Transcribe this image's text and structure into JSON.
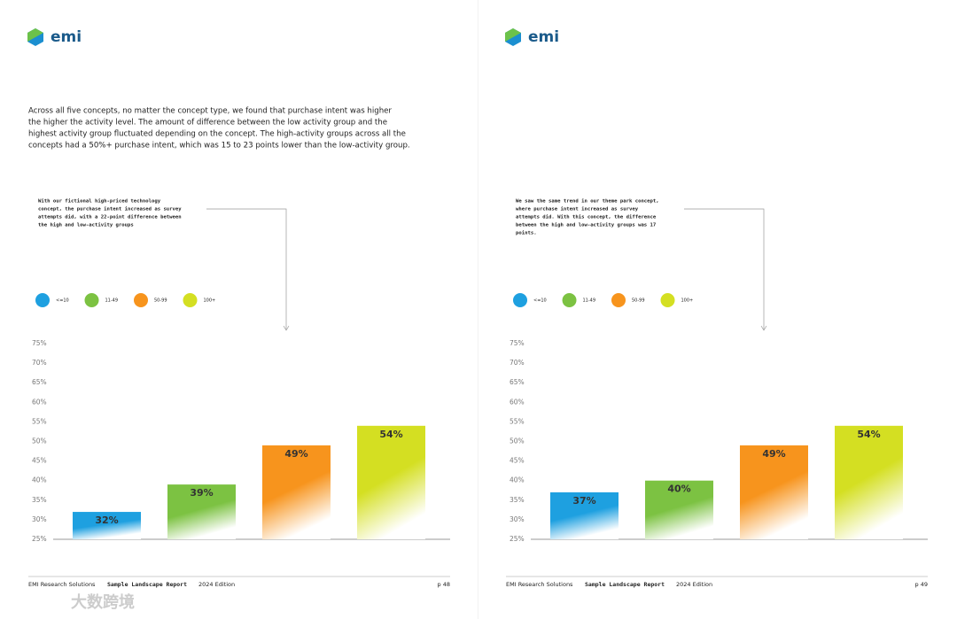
{
  "pages": [
    {
      "logo": "emi",
      "intro": [
        "Across all five concepts, no matter the concept type, we found that purchase intent was higher",
        "the higher the activity level. The amount of difference between the low activity group and the",
        "highest activity group fluctuated depending on the concept. The high-activity groups across all the",
        "concepts had a 50%+ purchase intent, which was 15 to 23 points lower than the low-activity group."
      ],
      "note": [
        "With our fictional high-priced technology",
        "concept, the purchase intent increased as survey",
        "attempts did, with a 22-point difference between",
        "the high and low-activity groups"
      ],
      "footer": {
        "org": "EMI Research Solutions",
        "report": "Sample Landscape Report",
        "edition": "2024 Edition",
        "page": "p 48"
      }
    },
    {
      "logo": "emi",
      "note": [
        "We saw the same trend in our theme park concept,",
        "where purchase intent increased as survey",
        "attempts did. With this concept, the difference",
        "between the high and low-activity groups was 17",
        "points."
      ],
      "footer": {
        "org": "EMI Research Solutions",
        "report": "Sample Landscape Report",
        "edition": "2024 Edition",
        "page": "p 49"
      }
    }
  ],
  "chart_data": [
    {
      "type": "bar",
      "categories": [
        "<=10",
        "11-49",
        "50-99",
        "100+"
      ],
      "colors": [
        "#1ea0e0",
        "#7cc242",
        "#f7941d",
        "#d4df22"
      ],
      "values": [
        32,
        39,
        49,
        54
      ],
      "value_labels": [
        "32%",
        "39%",
        "49%",
        "54%"
      ],
      "ylim": [
        25,
        75
      ],
      "yticks": [
        {
          "value": 25,
          "label": "25%"
        },
        {
          "value": 30,
          "label": "30%"
        },
        {
          "value": 35,
          "label": "35%"
        },
        {
          "value": 40,
          "label": "40%"
        },
        {
          "value": 45,
          "label": "45%"
        },
        {
          "value": 50,
          "label": "50%"
        },
        {
          "value": 55,
          "label": "55%"
        },
        {
          "value": 60,
          "label": "60%"
        },
        {
          "value": 65,
          "label": "65%"
        },
        {
          "value": 70,
          "label": "70%"
        },
        {
          "value": 75,
          "label": "75%"
        }
      ]
    },
    {
      "type": "bar",
      "categories": [
        "<=10",
        "11-49",
        "50-99",
        "100+"
      ],
      "colors": [
        "#1ea0e0",
        "#7cc242",
        "#f7941d",
        "#d4df22"
      ],
      "values": [
        37,
        40,
        49,
        54
      ],
      "value_labels": [
        "37%",
        "40%",
        "49%",
        "54%"
      ],
      "ylim": [
        25,
        75
      ],
      "yticks": [
        {
          "value": 25,
          "label": "25%"
        },
        {
          "value": 30,
          "label": "30%"
        },
        {
          "value": 35,
          "label": "35%"
        },
        {
          "value": 40,
          "label": "40%"
        },
        {
          "value": 45,
          "label": "45%"
        },
        {
          "value": 50,
          "label": "50%"
        },
        {
          "value": 55,
          "label": "55%"
        },
        {
          "value": 60,
          "label": "60%"
        },
        {
          "value": 65,
          "label": "65%"
        },
        {
          "value": 70,
          "label": "70%"
        },
        {
          "value": 75,
          "label": "75%"
        }
      ]
    }
  ],
  "watermark": "大数跨境"
}
